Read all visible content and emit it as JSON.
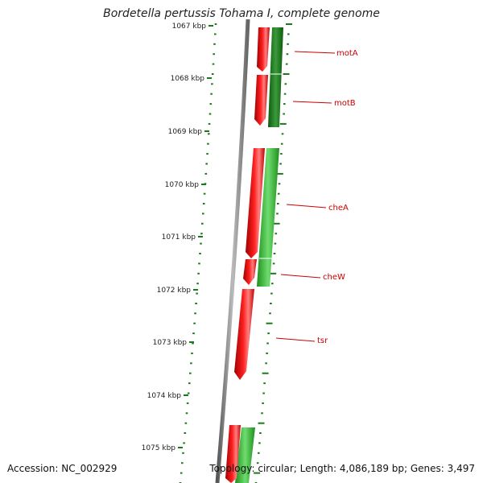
{
  "title": "Bordetella pertussis Tohama I, complete genome",
  "accession": "Accession: NC_002929",
  "topology": "Topology: circular; Length: 4,086,189 bp; Genes: 3,497",
  "tick_labels": [
    "1067 kbp",
    "1068 kbp",
    "1069 kbp",
    "1070 kbp",
    "1071 kbp",
    "1072 kbp",
    "1073 kbp",
    "1074 kbp",
    "1075 kbp"
  ],
  "genes": [
    {
      "name": "motA",
      "strand": "reverse"
    },
    {
      "name": "motB",
      "strand": "reverse"
    },
    {
      "name": "cheA",
      "strand": "reverse"
    },
    {
      "name": "cheW",
      "strand": "reverse"
    },
    {
      "name": "tsr",
      "strand": "reverse"
    }
  ],
  "colors": {
    "reverse_gene": "#ff1a1a",
    "forward_track": "#22a022",
    "ticks": "#1a7a1a",
    "backbone": "#808080",
    "gene_label": "#cc0000"
  }
}
